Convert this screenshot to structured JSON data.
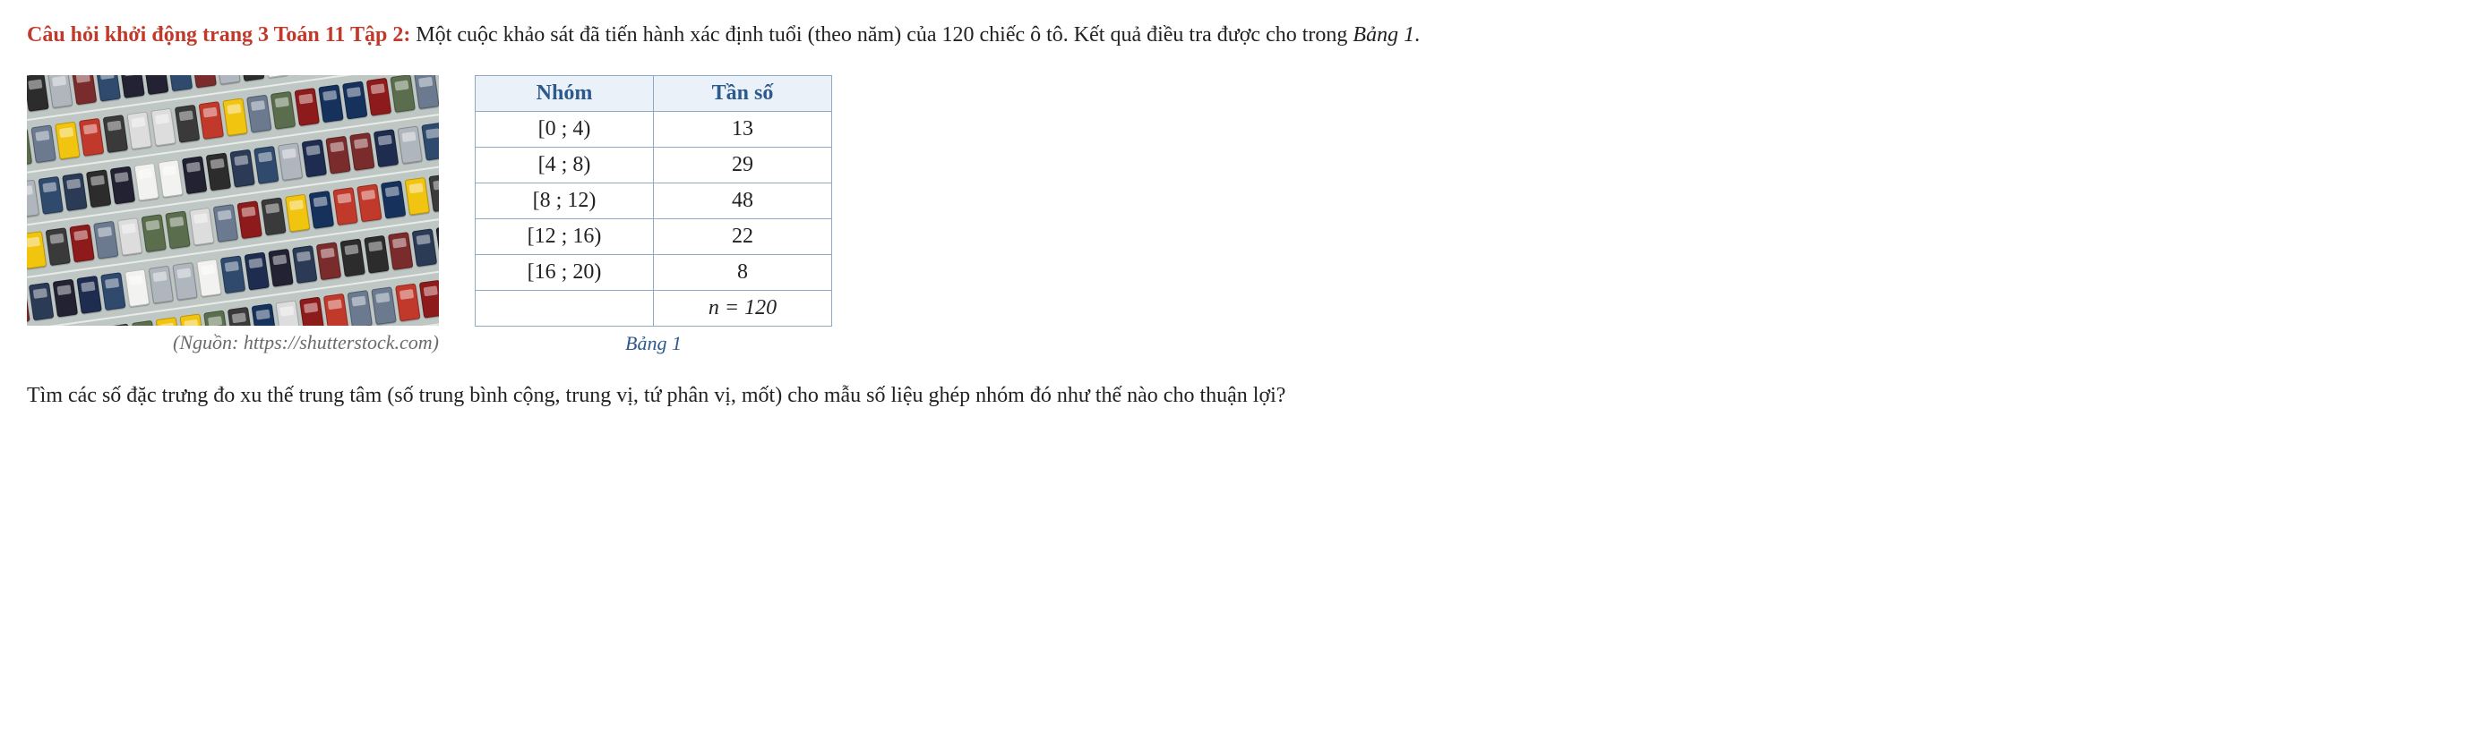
{
  "header": {
    "prefix": "Câu hỏi khởi động trang 3 Toán 11 Tập 2:",
    "intro_a": "Một cuộc khảo sát đã tiến hành xác định tuổi (theo năm) của 120 chiếc ô tô. Kết quả điều tra được cho trong ",
    "intro_italic": "Bảng 1",
    "intro_b": "."
  },
  "photo": {
    "caption": "(Nguồn: https://shutterstock.com)",
    "car_colors": [
      "#2b3a55",
      "#6b7a8f",
      "#b0b6bd",
      "#c0392b",
      "#f2f2f0",
      "#16325c",
      "#223",
      "#8e1b1b",
      "#304a6e",
      "#f1c40f",
      "#2c2c2c",
      "#5a6e4d",
      "#7a2c2c",
      "#ddd",
      "#1e2d4f",
      "#3a3a3a"
    ]
  },
  "table": {
    "headers": [
      "Nhóm",
      "Tần số"
    ],
    "rows": [
      [
        "[0 ; 4)",
        "13"
      ],
      [
        "[4 ; 8)",
        "29"
      ],
      [
        "[8 ; 12)",
        "48"
      ],
      [
        "[12 ; 16)",
        "22"
      ],
      [
        "[16 ; 20)",
        "8"
      ]
    ],
    "total_label": "n = 120",
    "caption": "Bảng 1",
    "header_bg": "#eaf1f8",
    "header_color": "#2d5a8e",
    "border_color": "#8fa8c4"
  },
  "question": "Tìm các số đặc trưng đo xu thế trung tâm (số trung bình cộng, trung vị, tứ phân vị, mốt) cho mẫu số liệu ghép nhóm đó như thế nào cho thuận lợi?"
}
